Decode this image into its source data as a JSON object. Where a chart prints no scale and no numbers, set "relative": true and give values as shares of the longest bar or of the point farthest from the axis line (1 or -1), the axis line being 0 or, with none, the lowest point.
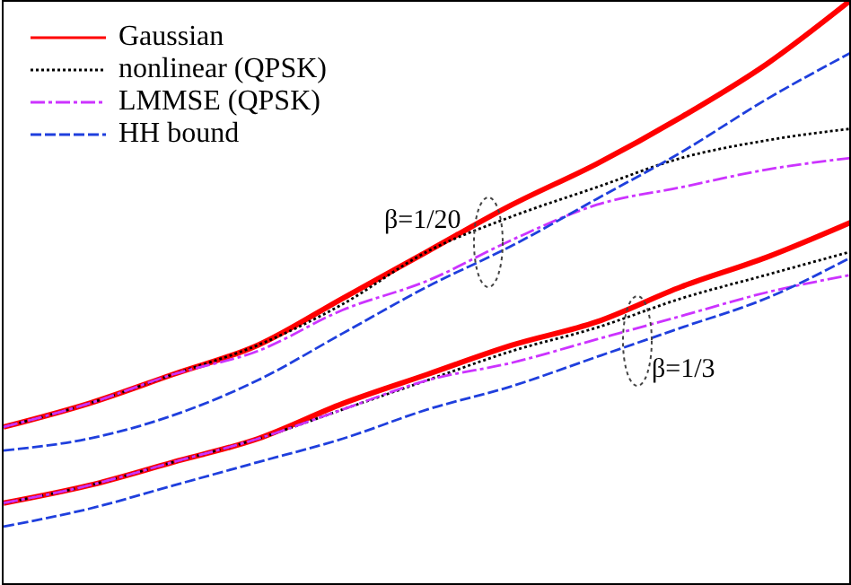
{
  "chart_data": {
    "type": "line",
    "relative": true,
    "categories": [
      null,
      null,
      null,
      null,
      null,
      null,
      null,
      null,
      null,
      null,
      null
    ],
    "legend": "top left",
    "tick_labels": false,
    "marker": "none",
    "series": [
      {
        "name": "Gaussian",
        "color": "#ff0000",
        "line_style": "solid",
        "values": [
          0.27,
          0.31,
          0.36,
          0.41,
          0.49,
          0.57,
          0.65,
          0.72,
          0.8,
          0.89,
          1
        ]
      },
      {
        "name": "nonlinear (QPSK)",
        "color": "#000000",
        "line_style": "dotted",
        "values": [
          0.27,
          0.31,
          0.36,
          0.41,
          0.48,
          0.57,
          0.63,
          0.68,
          0.73,
          0.76,
          0.78
        ]
      },
      {
        "name": "LMMSE (QPSK)",
        "color": "#cc33ff",
        "line_style": "dashed",
        "values": [
          0.27,
          0.31,
          0.36,
          0.4,
          0.47,
          0.52,
          0.59,
          0.65,
          0.68,
          0.71,
          0.73
        ]
      },
      {
        "name": "HH bound",
        "color": "#1f3fdd",
        "line_style": "dashed",
        "values": [
          0.23,
          0.25,
          0.29,
          0.35,
          0.43,
          0.51,
          0.58,
          0.66,
          0.74,
          0.83,
          0.91
        ]
      },
      {
        "color": "#ff0000",
        "line_style": "solid",
        "values": [
          0.14,
          0.17,
          0.21,
          0.25,
          0.31,
          0.36,
          0.41,
          0.45,
          0.51,
          0.56,
          0.62
        ]
      },
      {
        "color": "#000000",
        "line_style": "dotted",
        "values": [
          0.14,
          0.17,
          0.21,
          0.25,
          0.3,
          0.35,
          0.4,
          0.44,
          0.49,
          0.53,
          0.57
        ]
      },
      {
        "color": "#cc33ff",
        "line_style": "dashed",
        "values": [
          0.14,
          0.17,
          0.21,
          0.25,
          0.3,
          0.35,
          0.38,
          0.42,
          0.46,
          0.5,
          0.53
        ]
      },
      {
        "color": "#1f3fdd",
        "line_style": "dashed",
        "values": [
          0.1,
          0.13,
          0.17,
          0.21,
          0.25,
          0.3,
          0.34,
          0.39,
          0.44,
          0.49,
          0.56
        ]
      }
    ],
    "annotations": [
      "β=1/20",
      "β=1/3"
    ]
  }
}
